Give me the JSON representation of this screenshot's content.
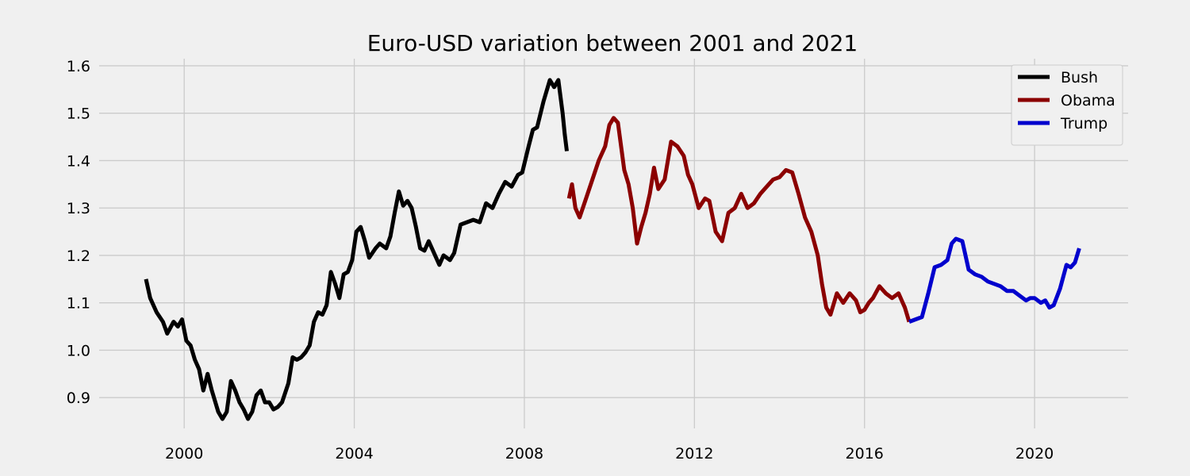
{
  "chart_data": {
    "type": "line",
    "title": "Euro-USD variation between 2001 and 2021",
    "xlabel": "",
    "ylabel": "",
    "xlim": [
      1998.0,
      2022.2
    ],
    "ylim": [
      0.835,
      1.615
    ],
    "x_ticks": [
      2000,
      2004,
      2008,
      2012,
      2016,
      2020
    ],
    "x_tick_labels": [
      "2000",
      "2004",
      "2008",
      "2012",
      "2016",
      "2020"
    ],
    "y_ticks": [
      0.9,
      1.0,
      1.1,
      1.2,
      1.3,
      1.4,
      1.5,
      1.6
    ],
    "y_tick_labels": [
      "0.9",
      "1.0",
      "1.1",
      "1.2",
      "1.3",
      "1.4",
      "1.5",
      "1.6"
    ],
    "grid": true,
    "legend_position": "top-right",
    "colors": {
      "background": "#f0f0f0",
      "grid": "#cbcbcb"
    },
    "series": [
      {
        "name": "Bush",
        "color": "#000000",
        "x": [
          1999.1,
          1999.2,
          1999.35,
          1999.5,
          1999.6,
          1999.75,
          1999.85,
          1999.95,
          2000.05,
          2000.15,
          2000.25,
          2000.35,
          2000.45,
          2000.55,
          2000.65,
          2000.8,
          2000.9,
          2001.0,
          2001.1,
          2001.2,
          2001.3,
          2001.4,
          2001.5,
          2001.6,
          2001.7,
          2001.8,
          2001.9,
          2002.0,
          2002.1,
          2002.2,
          2002.3,
          2002.45,
          2002.55,
          2002.65,
          2002.75,
          2002.85,
          2002.95,
          2003.05,
          2003.15,
          2003.25,
          2003.35,
          2003.45,
          2003.55,
          2003.65,
          2003.75,
          2003.85,
          2003.95,
          2004.05,
          2004.15,
          2004.25,
          2004.35,
          2004.5,
          2004.6,
          2004.75,
          2004.85,
          2004.95,
          2005.05,
          2005.15,
          2005.25,
          2005.35,
          2005.45,
          2005.55,
          2005.65,
          2005.75,
          2005.9,
          2006.0,
          2006.1,
          2006.25,
          2006.35,
          2006.5,
          2006.65,
          2006.8,
          2006.95,
          2007.1,
          2007.25,
          2007.4,
          2007.55,
          2007.7,
          2007.85,
          2007.95,
          2008.1,
          2008.2,
          2008.3,
          2008.45,
          2008.6,
          2008.7,
          2008.8,
          2008.9,
          2008.95,
          2009.0
        ],
        "y": [
          1.15,
          1.11,
          1.08,
          1.06,
          1.035,
          1.06,
          1.05,
          1.065,
          1.02,
          1.01,
          0.98,
          0.96,
          0.915,
          0.95,
          0.915,
          0.87,
          0.855,
          0.87,
          0.935,
          0.915,
          0.89,
          0.875,
          0.855,
          0.87,
          0.905,
          0.915,
          0.89,
          0.89,
          0.875,
          0.88,
          0.89,
          0.93,
          0.985,
          0.98,
          0.985,
          0.995,
          1.01,
          1.06,
          1.08,
          1.075,
          1.095,
          1.165,
          1.14,
          1.11,
          1.16,
          1.165,
          1.19,
          1.25,
          1.26,
          1.23,
          1.195,
          1.215,
          1.225,
          1.215,
          1.24,
          1.29,
          1.335,
          1.305,
          1.315,
          1.3,
          1.26,
          1.215,
          1.21,
          1.23,
          1.2,
          1.18,
          1.2,
          1.19,
          1.205,
          1.265,
          1.27,
          1.275,
          1.27,
          1.31,
          1.3,
          1.33,
          1.355,
          1.345,
          1.37,
          1.375,
          1.43,
          1.465,
          1.47,
          1.525,
          1.57,
          1.555,
          1.57,
          1.5,
          1.455,
          1.42
        ]
      },
      {
        "name": "Obama",
        "color": "#8b0000",
        "x": [
          2009.05,
          2009.12,
          2009.2,
          2009.3,
          2009.45,
          2009.6,
          2009.75,
          2009.9,
          2010.0,
          2010.1,
          2010.2,
          2010.35,
          2010.45,
          2010.55,
          2010.65,
          2010.75,
          2010.85,
          2010.95,
          2011.05,
          2011.15,
          2011.3,
          2011.45,
          2011.6,
          2011.75,
          2011.85,
          2011.95,
          2012.1,
          2012.25,
          2012.35,
          2012.5,
          2012.65,
          2012.8,
          2012.95,
          2013.1,
          2013.25,
          2013.4,
          2013.55,
          2013.7,
          2013.85,
          2014.0,
          2014.15,
          2014.3,
          2014.45,
          2014.6,
          2014.75,
          2014.9,
          2015.0,
          2015.1,
          2015.2,
          2015.35,
          2015.5,
          2015.65,
          2015.8,
          2015.9,
          2016.0,
          2016.1,
          2016.2,
          2016.35,
          2016.5,
          2016.65,
          2016.8,
          2016.95,
          2017.05
        ],
        "y": [
          1.32,
          1.35,
          1.3,
          1.28,
          1.32,
          1.36,
          1.4,
          1.43,
          1.475,
          1.49,
          1.48,
          1.38,
          1.35,
          1.3,
          1.225,
          1.26,
          1.29,
          1.33,
          1.385,
          1.34,
          1.36,
          1.44,
          1.43,
          1.41,
          1.37,
          1.35,
          1.3,
          1.32,
          1.315,
          1.25,
          1.23,
          1.29,
          1.3,
          1.33,
          1.3,
          1.31,
          1.33,
          1.345,
          1.36,
          1.365,
          1.38,
          1.375,
          1.33,
          1.28,
          1.25,
          1.2,
          1.14,
          1.09,
          1.075,
          1.12,
          1.1,
          1.12,
          1.105,
          1.08,
          1.085,
          1.1,
          1.11,
          1.135,
          1.12,
          1.11,
          1.12,
          1.09,
          1.06
        ]
      },
      {
        "name": "Trump",
        "color": "#0000cd",
        "x": [
          2017.05,
          2017.2,
          2017.35,
          2017.5,
          2017.65,
          2017.8,
          2017.95,
          2018.05,
          2018.15,
          2018.3,
          2018.45,
          2018.6,
          2018.75,
          2018.9,
          2019.05,
          2019.2,
          2019.35,
          2019.5,
          2019.65,
          2019.8,
          2019.9,
          2020.0,
          2020.15,
          2020.25,
          2020.35,
          2020.45,
          2020.6,
          2020.75,
          2020.85,
          2020.95,
          2021.05
        ],
        "y": [
          1.06,
          1.065,
          1.07,
          1.12,
          1.175,
          1.18,
          1.19,
          1.225,
          1.235,
          1.23,
          1.17,
          1.16,
          1.155,
          1.145,
          1.14,
          1.135,
          1.125,
          1.125,
          1.115,
          1.105,
          1.11,
          1.11,
          1.1,
          1.105,
          1.09,
          1.095,
          1.13,
          1.18,
          1.175,
          1.185,
          1.215
        ]
      }
    ]
  }
}
